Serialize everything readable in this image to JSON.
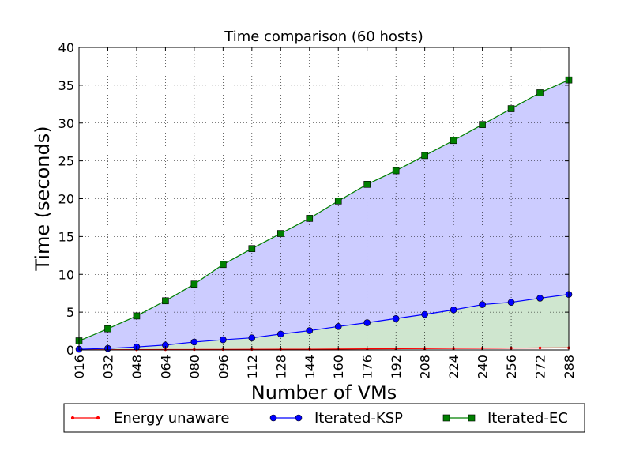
{
  "chart_data": {
    "type": "line",
    "title": "Time comparison (60 hosts)",
    "xlabel": "Number of VMs",
    "ylabel": "Time (seconds)",
    "ylim": [
      0,
      40
    ],
    "yticks": [
      "0",
      "5",
      "10",
      "15",
      "20",
      "25",
      "30",
      "35",
      "40"
    ],
    "categories": [
      "016",
      "032",
      "048",
      "064",
      "080",
      "096",
      "112",
      "128",
      "144",
      "160",
      "176",
      "192",
      "208",
      "224",
      "240",
      "256",
      "272",
      "288"
    ],
    "grid": true,
    "legend_position": "bottom",
    "series": [
      {
        "name": "Energy unaware",
        "color": "#ff0000",
        "marker": "dot",
        "fill": "none",
        "values": [
          0.02,
          0.03,
          0.04,
          0.05,
          0.06,
          0.07,
          0.08,
          0.09,
          0.1,
          0.12,
          0.14,
          0.16,
          0.18,
          0.2,
          0.22,
          0.24,
          0.26,
          0.28
        ]
      },
      {
        "name": "Iterated-KSP",
        "color": "#0000ff",
        "marker": "circle",
        "fill": "#cfe6cf",
        "values": [
          0.1,
          0.2,
          0.4,
          0.65,
          1.05,
          1.35,
          1.6,
          2.1,
          2.55,
          3.1,
          3.6,
          4.15,
          4.7,
          5.3,
          6.0,
          6.3,
          6.85,
          7.35
        ]
      },
      {
        "name": "Iterated-EC",
        "color": "#008000",
        "marker": "square",
        "fill": "#ccccff",
        "values": [
          1.2,
          2.8,
          4.5,
          6.5,
          8.7,
          11.3,
          13.4,
          15.4,
          17.4,
          19.7,
          21.9,
          23.7,
          25.7,
          27.7,
          29.8,
          31.9,
          34.0,
          35.7
        ]
      }
    ]
  }
}
